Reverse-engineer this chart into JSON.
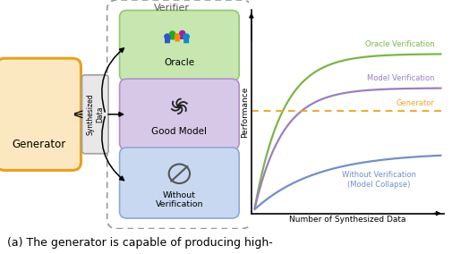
{
  "fig_width": 5.06,
  "fig_height": 2.84,
  "dpi": 100,
  "caption": "(a) The generator is capable of producing high-",
  "graph": {
    "oracle_color": "#7ab648",
    "model_verif_color": "#9b7fc0",
    "generator_color": "#f0a830",
    "without_color": "#7090c8",
    "oracle_label": "Oracle Verification",
    "model_verif_label": "Model Verification",
    "generator_label": "Generator",
    "without_label": "Without Verification\n(Model Collapse)",
    "xlabel": "Number of Synthesized Data",
    "ylabel": "Performance"
  },
  "diagram": {
    "generator_bg": "#fce8c0",
    "generator_border": "#e8a020",
    "oracle_bg": "#c8e6b0",
    "oracle_border": "#90c870",
    "good_model_bg": "#d8c8e8",
    "good_model_border": "#b090cc",
    "without_bg": "#c8d8f0",
    "without_border": "#90a8d8",
    "synth_bg": "#e8e8e8",
    "synth_border": "#a0a0a0",
    "verifier_bg": "none",
    "verifier_border": "#999999"
  }
}
